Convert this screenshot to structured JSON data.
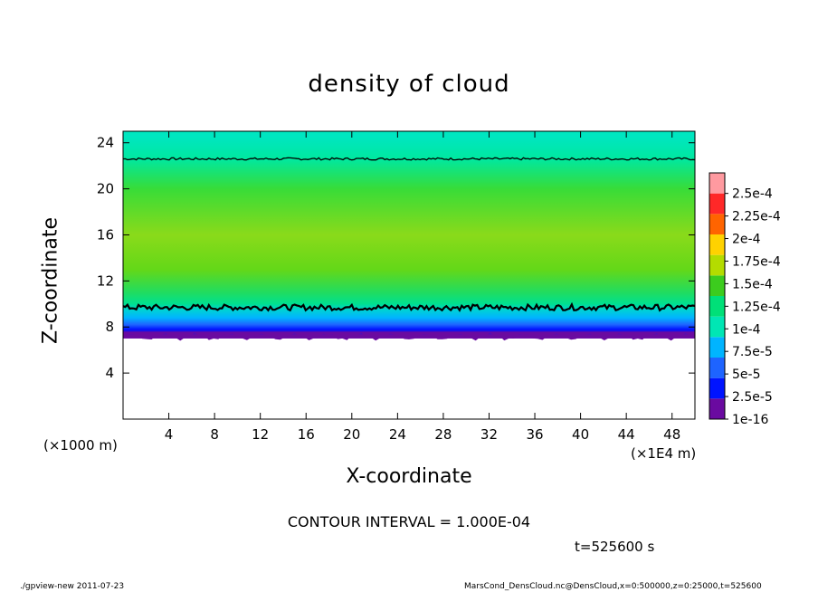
{
  "chart_data": {
    "type": "heatmap",
    "title": "density of cloud",
    "xlabel": "X-coordinate",
    "ylabel": "Z-coordinate",
    "x_unit_label": "(×1000 m)",
    "x_scale_label": "(×1E4 m)",
    "xlim": [
      0,
      50
    ],
    "ylim": [
      0,
      25
    ],
    "xticks": [
      "4",
      "8",
      "12",
      "16",
      "20",
      "24",
      "28",
      "32",
      "36",
      "40",
      "44",
      "48"
    ],
    "yticks": [
      "4",
      "8",
      "12",
      "16",
      "20",
      "24"
    ],
    "colorbar": {
      "labels": [
        "1e-16",
        "2.5e-5",
        "5e-5",
        "7.5e-5",
        "1e-4",
        "1.25e-4",
        "1.5e-4",
        "1.75e-4",
        "2e-4",
        "2.25e-4",
        "2.5e-4"
      ],
      "colors": [
        "#6a0aa0",
        "#0014ff",
        "#1e64ff",
        "#00b4ff",
        "#00e6b4",
        "#00e078",
        "#3ccc1e",
        "#b4dc00",
        "#ffd200",
        "#ff6400",
        "#ff2828",
        "#ff9aa0"
      ]
    },
    "contour_levels": [
      0.0001
    ],
    "profile": [
      {
        "z": 24.5,
        "color": "#00e6c0"
      },
      {
        "z": 22.6,
        "color": "#00e8a0"
      },
      {
        "z": 20.0,
        "color": "#38dc38"
      },
      {
        "z": 16.0,
        "color": "#8ada1a"
      },
      {
        "z": 13.0,
        "color": "#64d818"
      },
      {
        "z": 11.0,
        "color": "#20dc60"
      },
      {
        "z": 10.0,
        "color": "#00e090"
      },
      {
        "z": 9.5,
        "color": "#00d2d2"
      },
      {
        "z": 8.8,
        "color": "#00b4ff"
      },
      {
        "z": 8.2,
        "color": "#1e64ff"
      },
      {
        "z": 7.8,
        "color": "#0014ff"
      },
      {
        "z": 7.3,
        "color": "#6a0aa0"
      }
    ],
    "contour_lines": [
      {
        "z": 22.6
      },
      {
        "z": 9.7
      }
    ],
    "cloud_bottom_z": 7.0
  },
  "annotations": {
    "contour_interval": "CONTOUR INTERVAL = 1.000E-04",
    "time": "t=525600 s",
    "footer_left": "./gpview-new   2011-07-23",
    "footer_right": "MarsCond_DensCloud.nc@DensCloud,x=0:500000,z=0:25000,t=525600"
  }
}
